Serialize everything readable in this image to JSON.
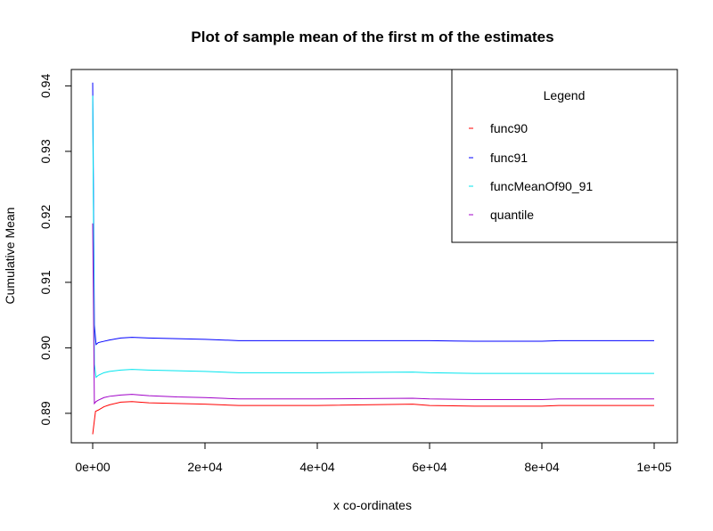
{
  "chart_data": {
    "type": "line",
    "title": "Plot of sample mean of the first m of the estimates",
    "xlabel": "x co-ordinates",
    "ylabel": "Cumulative Mean",
    "xlim": [
      0,
      100000
    ],
    "ylim": [
      0.8855,
      0.9425
    ],
    "x_ticks": [
      0,
      20000,
      40000,
      60000,
      80000,
      100000
    ],
    "x_tick_labels": [
      "0e+00",
      "2e+04",
      "4e+04",
      "6e+04",
      "8e+04",
      "1e+05"
    ],
    "y_ticks": [
      0.89,
      0.9,
      0.91,
      0.92,
      0.93,
      0.94
    ],
    "y_tick_labels": [
      "0.89",
      "0.90",
      "0.91",
      "0.92",
      "0.93",
      "0.94"
    ],
    "grid": false,
    "legend": {
      "title": "Legend",
      "position": "top-right",
      "entries": [
        "func90",
        "func91",
        "funcMeanOf90_91",
        "quantile"
      ]
    },
    "series": [
      {
        "name": "func90",
        "color": "#ff0000",
        "x": [
          0,
          500,
          1000,
          2000,
          3000,
          5000,
          7000,
          10000,
          15000,
          20000,
          26000,
          40000,
          57000,
          60000,
          68000,
          80000,
          83000,
          100000
        ],
        "y": [
          0.8868,
          0.8903,
          0.8905,
          0.891,
          0.8913,
          0.8917,
          0.8918,
          0.8916,
          0.8915,
          0.8914,
          0.8912,
          0.8912,
          0.8914,
          0.8912,
          0.8911,
          0.8911,
          0.8912,
          0.8912
        ]
      },
      {
        "name": "func91",
        "color": "#0000ff",
        "x": [
          0,
          300,
          600,
          1000,
          2000,
          3000,
          5000,
          7000,
          10000,
          15000,
          20000,
          26000,
          40000,
          57000,
          60000,
          68000,
          80000,
          83000,
          100000
        ],
        "y": [
          0.9405,
          0.9035,
          0.9005,
          0.9008,
          0.901,
          0.9012,
          0.9015,
          0.9016,
          0.9015,
          0.9014,
          0.9013,
          0.9011,
          0.9011,
          0.9011,
          0.9011,
          0.901,
          0.901,
          0.9011,
          0.9011
        ]
      },
      {
        "name": "funcMeanOf90_91",
        "color": "#00e5ee",
        "x": [
          0,
          300,
          600,
          1000,
          2000,
          3000,
          5000,
          7000,
          10000,
          15000,
          20000,
          26000,
          40000,
          57000,
          60000,
          68000,
          80000,
          83000,
          100000
        ],
        "y": [
          0.9385,
          0.8975,
          0.8955,
          0.8958,
          0.8962,
          0.8964,
          0.8966,
          0.8967,
          0.8966,
          0.8965,
          0.8964,
          0.8962,
          0.8962,
          0.8963,
          0.8962,
          0.8961,
          0.8961,
          0.8961,
          0.8961
        ]
      },
      {
        "name": "quantile",
        "color": "#a000c8",
        "x": [
          0,
          300,
          600,
          1000,
          2000,
          3000,
          5000,
          7000,
          10000,
          15000,
          20000,
          26000,
          40000,
          57000,
          60000,
          68000,
          80000,
          83000,
          100000
        ],
        "y": [
          0.919,
          0.8915,
          0.8918,
          0.892,
          0.8924,
          0.8926,
          0.8928,
          0.8929,
          0.8927,
          0.8925,
          0.8924,
          0.8922,
          0.8922,
          0.8923,
          0.8922,
          0.8921,
          0.8921,
          0.8922,
          0.8922
        ]
      }
    ]
  }
}
